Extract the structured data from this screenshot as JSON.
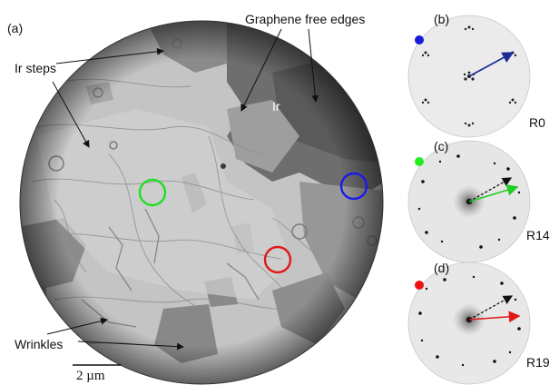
{
  "main_image": {
    "panel_label": "(a)",
    "annotations": {
      "graphene_free_edges": "Graphene free edges",
      "ir_steps": "Ir steps",
      "ir": "Ir",
      "wrinkles": "Wrinkles"
    },
    "scale_bar": {
      "label": "2 µm"
    },
    "markers": [
      {
        "name": "green-circle",
        "color": "#22dd22"
      },
      {
        "name": "blue-circle",
        "color": "#1a1aee"
      },
      {
        "name": "red-circle",
        "color": "#e01818"
      }
    ]
  },
  "diffraction_panels": [
    {
      "panel_label": "(b)",
      "dot_color": "#1a1add",
      "tag": "R0",
      "arrow_color": "#1a2a9a"
    },
    {
      "panel_label": "(c)",
      "dot_color": "#22ee22",
      "tag": "R14",
      "arrow_color": "#22cc22"
    },
    {
      "panel_label": "(d)",
      "dot_color": "#ee1111",
      "tag": "R19",
      "arrow_color": "#e01818"
    }
  ]
}
